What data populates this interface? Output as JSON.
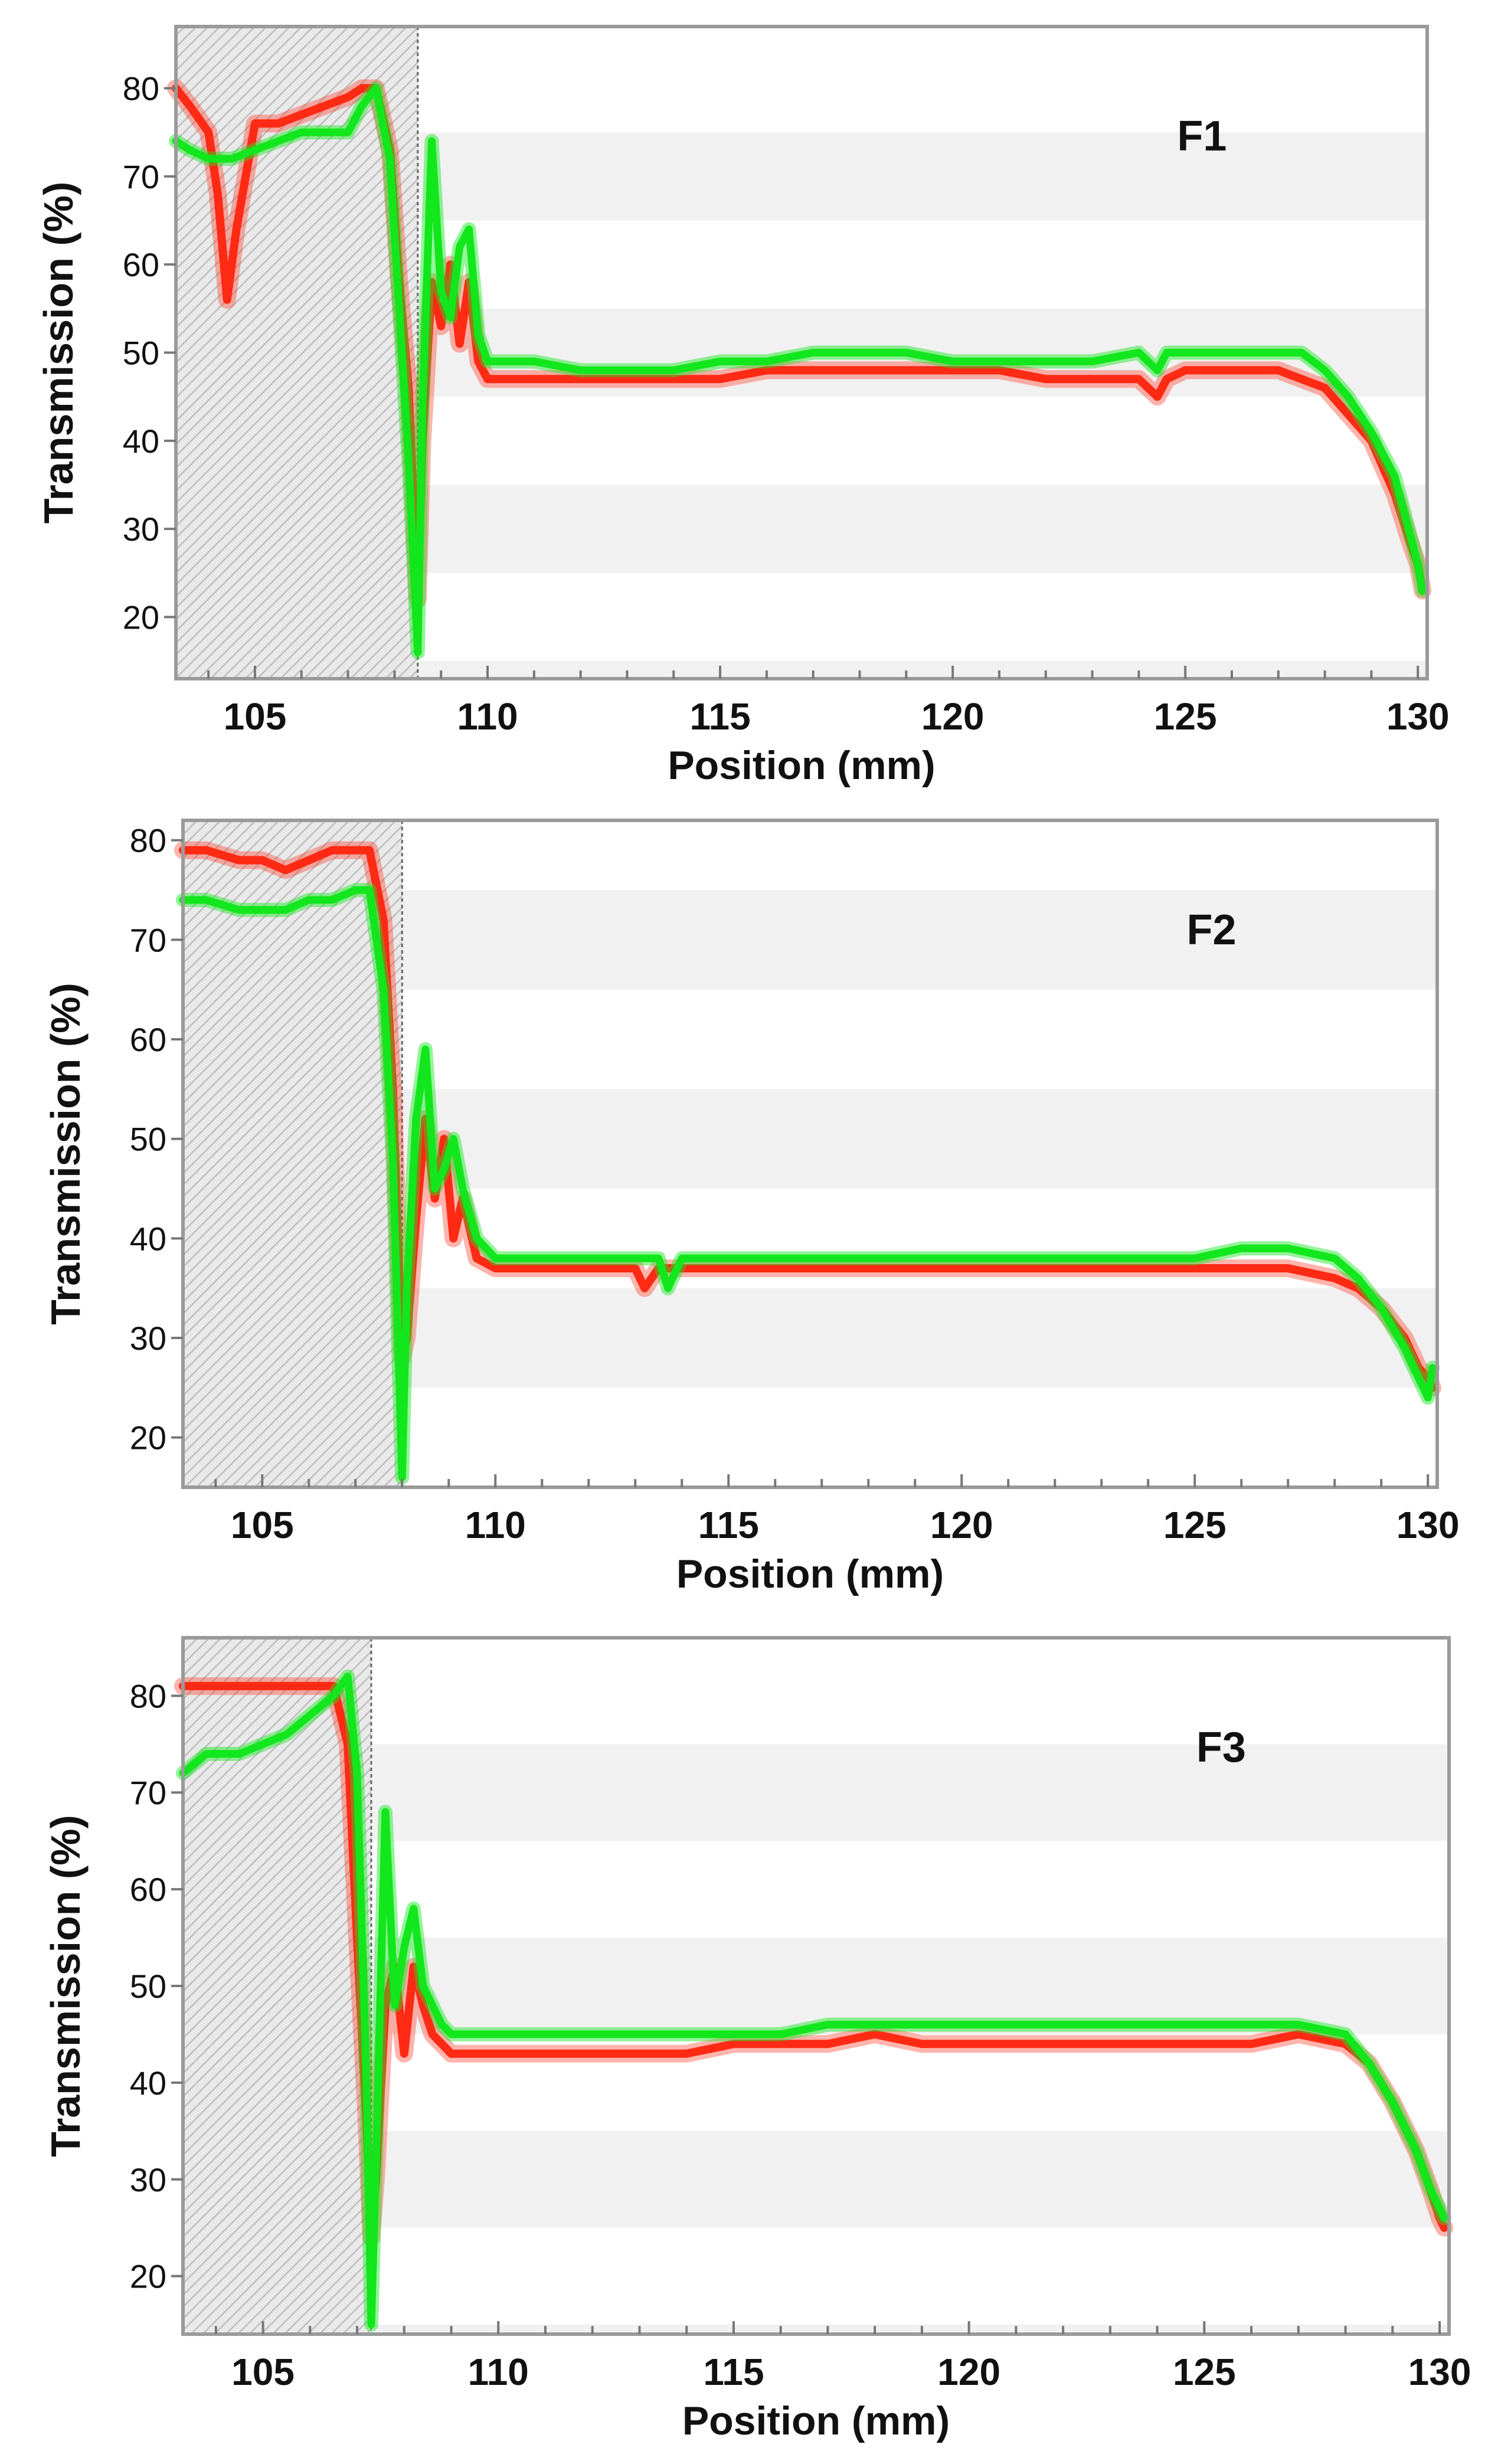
{
  "colors": {
    "red_series": "#ff2a14",
    "green_series": "#12e61c",
    "plot_border": "#9a9a9a",
    "stripe": "#f1f1f1",
    "hatch": "#b9b9b9",
    "text": "#111111"
  },
  "chart_data": [
    {
      "type": "line",
      "panel_label": "F1",
      "xlabel": "Position (mm)",
      "ylabel": "Transmission (%)",
      "xlim": [
        103.3,
        130.2
      ],
      "ylim": [
        13,
        87
      ],
      "xticks": [
        105,
        110,
        115,
        120,
        125,
        130
      ],
      "yticks": [
        20,
        30,
        40,
        50,
        60,
        70,
        80
      ],
      "shaded_region": [
        103.3,
        108.5
      ],
      "series": [
        {
          "name": "red",
          "x": [
            103.3,
            103.6,
            104.0,
            104.2,
            104.4,
            104.6,
            105.0,
            105.5,
            106.0,
            106.5,
            107.0,
            107.3,
            107.6,
            107.9,
            108.1,
            108.3,
            108.5,
            108.6,
            108.8,
            109.0,
            109.2,
            109.4,
            109.6,
            109.8,
            110.0,
            111,
            112,
            113,
            114,
            115,
            116,
            117,
            118,
            119,
            120,
            121,
            122,
            123,
            124,
            124.4,
            124.6,
            125,
            126,
            127,
            127.5,
            128,
            128.5,
            129,
            129.5,
            129.8,
            130.0,
            130.1
          ],
          "values": [
            80,
            78,
            75,
            68,
            56,
            64,
            76,
            76,
            77,
            78,
            79,
            80,
            80,
            73,
            58,
            46,
            22,
            40,
            58,
            53,
            60,
            51,
            58,
            49,
            47,
            47,
            47,
            47,
            47,
            47,
            48,
            48,
            48,
            48,
            48,
            48,
            47,
            47,
            47,
            45,
            47,
            48,
            48,
            48,
            47,
            46,
            43,
            40,
            34,
            29,
            26,
            23
          ]
        },
        {
          "name": "green",
          "x": [
            103.3,
            103.6,
            104.0,
            104.5,
            105.0,
            105.5,
            106.0,
            106.5,
            107.0,
            107.3,
            107.6,
            107.9,
            108.1,
            108.3,
            108.5,
            108.6,
            108.8,
            109.0,
            109.2,
            109.4,
            109.6,
            109.8,
            110.0,
            111,
            112,
            113,
            114,
            115,
            116,
            117,
            118,
            119,
            120,
            121,
            122,
            123,
            124,
            124.4,
            124.6,
            125,
            126,
            127,
            127.5,
            128,
            128.5,
            129,
            129.5,
            129.8,
            130.0,
            130.1
          ],
          "values": [
            74,
            73,
            72,
            72,
            73,
            74,
            75,
            75,
            75,
            78,
            80,
            72,
            55,
            38,
            16,
            44,
            74,
            57,
            54,
            62,
            64,
            52,
            49,
            49,
            48,
            48,
            48,
            49,
            49,
            50,
            50,
            50,
            49,
            49,
            49,
            49,
            50,
            48,
            50,
            50,
            50,
            50,
            50,
            48,
            45,
            41,
            36,
            30,
            26,
            23
          ]
        }
      ]
    },
    {
      "type": "line",
      "panel_label": "F2",
      "xlabel": "Position (mm)",
      "ylabel": "Transmission (%)",
      "xlim": [
        103.3,
        130.2
      ],
      "ylim": [
        15,
        82
      ],
      "xticks": [
        105,
        110,
        115,
        120,
        125,
        130
      ],
      "yticks": [
        20,
        30,
        40,
        50,
        60,
        70,
        80
      ],
      "shaded_region": [
        103.3,
        108.0
      ],
      "series": [
        {
          "name": "red",
          "x": [
            103.3,
            103.8,
            104.5,
            105.0,
            105.5,
            106.0,
            106.5,
            107.0,
            107.3,
            107.6,
            107.8,
            108.0,
            108.1,
            108.3,
            108.5,
            108.7,
            108.9,
            109.1,
            109.3,
            109.6,
            110,
            111,
            112,
            113,
            113.2,
            113.5,
            114,
            115,
            116,
            117,
            118,
            119,
            120,
            121,
            122,
            123,
            124,
            125,
            126,
            127,
            128,
            128.5,
            129,
            129.5,
            129.8,
            130.0,
            130.1
          ],
          "values": [
            79,
            79,
            78,
            78,
            77,
            78,
            79,
            79,
            79,
            72,
            55,
            28,
            30,
            42,
            52,
            44,
            50,
            40,
            44,
            38,
            37,
            37,
            37,
            37,
            35,
            37,
            37,
            37,
            37,
            37,
            37,
            37,
            37,
            37,
            37,
            37,
            37,
            37,
            37,
            37,
            36,
            35,
            33,
            30,
            27,
            26,
            25
          ]
        },
        {
          "name": "green",
          "x": [
            103.3,
            103.8,
            104.5,
            105.0,
            105.5,
            106.0,
            106.5,
            107.0,
            107.3,
            107.6,
            107.8,
            108.0,
            108.1,
            108.3,
            108.5,
            108.7,
            108.9,
            109.1,
            109.3,
            109.6,
            110,
            111,
            112,
            113,
            113.5,
            113.7,
            114,
            115,
            116,
            117,
            118,
            119,
            120,
            121,
            122,
            123,
            124,
            125,
            126,
            127,
            128,
            128.5,
            129,
            129.5,
            129.8,
            130.0,
            130.1
          ],
          "values": [
            74,
            74,
            73,
            73,
            73,
            74,
            74,
            75,
            75,
            65,
            48,
            16,
            35,
            52,
            59,
            45,
            47,
            50,
            45,
            40,
            38,
            38,
            38,
            38,
            38,
            35,
            38,
            38,
            38,
            38,
            38,
            38,
            38,
            38,
            38,
            38,
            38,
            38,
            39,
            39,
            38,
            36,
            33,
            29,
            26,
            24,
            27
          ]
        }
      ]
    },
    {
      "type": "line",
      "panel_label": "F3",
      "xlabel": "Position (mm)",
      "ylabel": "Transmission (%)",
      "xlim": [
        103.3,
        130.2
      ],
      "ylim": [
        14,
        86
      ],
      "xticks": [
        105,
        110,
        115,
        120,
        125,
        130
      ],
      "yticks": [
        20,
        30,
        40,
        50,
        60,
        70,
        80
      ],
      "shaded_region": [
        103.3,
        107.3
      ],
      "series": [
        {
          "name": "red",
          "x": [
            103.3,
            103.8,
            104.5,
            105.0,
            105.5,
            106.0,
            106.5,
            106.8,
            107.0,
            107.2,
            107.3,
            107.4,
            107.6,
            107.8,
            108.0,
            108.2,
            108.4,
            108.6,
            108.8,
            109,
            110,
            111,
            112,
            113,
            114,
            115,
            116,
            117,
            118,
            119,
            120,
            121,
            122,
            123,
            124,
            125,
            126,
            127,
            128,
            128.5,
            129,
            129.5,
            129.8,
            130.0,
            130.1
          ],
          "values": [
            81,
            81,
            81,
            81,
            81,
            81,
            81,
            75,
            55,
            36,
            24,
            30,
            48,
            52,
            43,
            52,
            48,
            45,
            44,
            43,
            43,
            43,
            43,
            43,
            43,
            44,
            44,
            44,
            45,
            44,
            44,
            44,
            44,
            44,
            44,
            44,
            44,
            45,
            44,
            42,
            38,
            33,
            29,
            26,
            25
          ]
        },
        {
          "name": "green",
          "x": [
            103.3,
            103.8,
            104.5,
            105.0,
            105.5,
            106.0,
            106.5,
            106.8,
            107.0,
            107.2,
            107.3,
            107.4,
            107.6,
            107.8,
            108.0,
            108.2,
            108.4,
            108.6,
            108.8,
            109,
            110,
            111,
            112,
            113,
            114,
            115,
            116,
            117,
            118,
            119,
            120,
            121,
            122,
            123,
            124,
            125,
            126,
            127,
            128,
            128.5,
            129,
            129.5,
            129.8,
            130.0,
            130.1
          ],
          "values": [
            72,
            74,
            74,
            75,
            76,
            78,
            80,
            82,
            72,
            40,
            15,
            32,
            68,
            48,
            54,
            58,
            50,
            48,
            46,
            45,
            45,
            45,
            45,
            45,
            45,
            45,
            45,
            46,
            46,
            46,
            46,
            46,
            46,
            46,
            46,
            46,
            46,
            46,
            45,
            42,
            38,
            33,
            29,
            27,
            26
          ]
        }
      ]
    }
  ]
}
